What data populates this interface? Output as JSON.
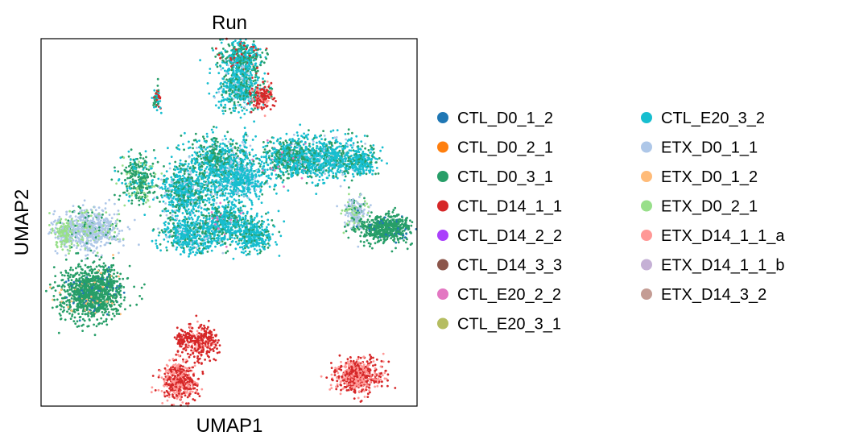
{
  "chart_data": {
    "type": "scatter",
    "title": "Run",
    "xlabel": "UMAP1",
    "ylabel": "UMAP2",
    "xticks": "none",
    "yticks": "none",
    "grid": false,
    "legend_placement": "right",
    "legend_columns": 2,
    "series": [
      {
        "name": "CTL_D0_1_2",
        "color": "#1f77b4"
      },
      {
        "name": "CTL_D0_2_1",
        "color": "#ff7f0e"
      },
      {
        "name": "CTL_D0_3_1",
        "color": "#279e68"
      },
      {
        "name": "CTL_D14_1_1",
        "color": "#d62728"
      },
      {
        "name": "CTL_D14_2_2",
        "color": "#aa40fc"
      },
      {
        "name": "CTL_D14_3_3",
        "color": "#8c564b"
      },
      {
        "name": "CTL_E20_2_2",
        "color": "#e377c2"
      },
      {
        "name": "CTL_E20_3_1",
        "color": "#b5bd61"
      },
      {
        "name": "CTL_E20_3_2",
        "color": "#17becf"
      },
      {
        "name": "ETX_D0_1_1",
        "color": "#aec7e8"
      },
      {
        "name": "ETX_D0_1_2",
        "color": "#ffbb78"
      },
      {
        "name": "ETX_D0_2_1",
        "color": "#98df8a"
      },
      {
        "name": "ETX_D14_1_1_a",
        "color": "#ff9896"
      },
      {
        "name": "ETX_D14_1_1_b",
        "color": "#c5b0d5"
      },
      {
        "name": "ETX_D14_3_2",
        "color": "#c49c94"
      }
    ],
    "clusters": [
      {
        "cx": 0.24,
        "cy": 0.94,
        "rx": 0.06,
        "ry": 0.05,
        "n": 420,
        "mix": {
          "CTL_E20_3_2": 0.5,
          "CTL_D0_3_1": 0.4,
          "CTL_D14_1_1": 0.1
        }
      },
      {
        "cx": 0.235,
        "cy": 0.845,
        "rx": 0.06,
        "ry": 0.07,
        "n": 520,
        "mix": {
          "CTL_E20_3_2": 0.6,
          "CTL_D0_3_1": 0.3,
          "ETX_D0_1_1": 0.1
        }
      },
      {
        "cx": 0.305,
        "cy": 0.81,
        "rx": 0.03,
        "ry": 0.035,
        "n": 180,
        "mix": {
          "CTL_D14_1_1": 0.7,
          "ETX_D14_1_1_a": 0.2,
          "CTL_D0_3_1": 0.1
        }
      },
      {
        "cx": -0.03,
        "cy": 0.805,
        "rx": 0.012,
        "ry": 0.03,
        "n": 60,
        "mix": {
          "CTL_E20_3_2": 0.5,
          "CTL_D14_1_1": 0.3,
          "CTL_D0_3_1": 0.2
        }
      },
      {
        "cx": 0.25,
        "cy": 0.64,
        "rx": 0.012,
        "ry": 0.06,
        "n": 40,
        "mix": {
          "CTL_E20_3_2": 0.6,
          "ETX_D0_1_1": 0.4
        }
      },
      {
        "cx": -0.085,
        "cy": 0.54,
        "rx": 0.055,
        "ry": 0.07,
        "n": 320,
        "mix": {
          "CTL_D0_3_1": 0.6,
          "CTL_E20_3_2": 0.25,
          "ETX_D0_2_1": 0.15
        }
      },
      {
        "cx": 0.06,
        "cy": 0.5,
        "rx": 0.07,
        "ry": 0.08,
        "n": 650,
        "mix": {
          "CTL_E20_3_2": 0.65,
          "CTL_D0_3_1": 0.25,
          "ETX_D0_1_1": 0.1
        }
      },
      {
        "cx": 0.16,
        "cy": 0.6,
        "rx": 0.09,
        "ry": 0.07,
        "n": 600,
        "mix": {
          "CTL_E20_3_2": 0.5,
          "CTL_D0_3_1": 0.45,
          "ETX_D0_1_1": 0.05
        }
      },
      {
        "cx": 0.23,
        "cy": 0.54,
        "rx": 0.08,
        "ry": 0.06,
        "n": 500,
        "mix": {
          "CTL_E20_3_2": 0.8,
          "ETX_D0_1_1": 0.15,
          "CTL_D0_3_1": 0.05
        }
      },
      {
        "cx": 0.395,
        "cy": 0.61,
        "rx": 0.08,
        "ry": 0.06,
        "n": 550,
        "mix": {
          "CTL_E20_3_2": 0.5,
          "CTL_D0_3_1": 0.45,
          "CTL_E20_2_2": 0.05
        }
      },
      {
        "cx": 0.52,
        "cy": 0.61,
        "rx": 0.11,
        "ry": 0.06,
        "n": 700,
        "mix": {
          "CTL_E20_3_2": 0.7,
          "CTL_D0_3_1": 0.2,
          "ETX_D0_1_1": 0.1
        }
      },
      {
        "cx": 0.625,
        "cy": 0.6,
        "rx": 0.045,
        "ry": 0.04,
        "n": 180,
        "mix": {
          "CTL_E20_3_2": 0.7,
          "CTL_D0_3_1": 0.3
        }
      },
      {
        "cx": 0.08,
        "cy": 0.36,
        "rx": 0.09,
        "ry": 0.05,
        "n": 500,
        "mix": {
          "CTL_E20_3_2": 0.7,
          "CTL_D0_3_1": 0.2,
          "ETX_D0_1_1": 0.1
        }
      },
      {
        "cx": 0.195,
        "cy": 0.4,
        "rx": 0.07,
        "ry": 0.06,
        "n": 450,
        "mix": {
          "CTL_E20_3_2": 0.7,
          "CTL_D0_3_1": 0.25,
          "CTL_E20_2_2": 0.05
        }
      },
      {
        "cx": 0.28,
        "cy": 0.36,
        "rx": 0.06,
        "ry": 0.05,
        "n": 300,
        "mix": {
          "CTL_E20_3_2": 0.8,
          "CTL_D0_3_1": 0.2
        }
      },
      {
        "cx": -0.25,
        "cy": 0.38,
        "rx": 0.09,
        "ry": 0.06,
        "n": 650,
        "mix": {
          "ETX_D0_1_1": 0.75,
          "ETX_D0_2_1": 0.15,
          "CTL_D0_3_1": 0.1
        }
      },
      {
        "cx": -0.325,
        "cy": 0.36,
        "rx": 0.025,
        "ry": 0.05,
        "n": 150,
        "mix": {
          "ETX_D0_2_1": 0.7,
          "ETX_D0_1_1": 0.3
        }
      },
      {
        "cx": -0.24,
        "cy": 0.17,
        "rx": 0.09,
        "ry": 0.08,
        "n": 1100,
        "mix": {
          "CTL_D0_3_1": 0.9,
          "CTL_D0_1_2": 0.05,
          "ETX_D0_1_2": 0.05
        }
      },
      {
        "cx": 0.605,
        "cy": 0.43,
        "rx": 0.03,
        "ry": 0.05,
        "n": 220,
        "mix": {
          "ETX_D0_1_1": 0.6,
          "ETX_D0_2_1": 0.25,
          "CTL_D0_3_1": 0.15
        }
      },
      {
        "cx": 0.7,
        "cy": 0.38,
        "rx": 0.08,
        "ry": 0.04,
        "n": 520,
        "mix": {
          "CTL_D0_3_1": 0.9,
          "CTL_D0_1_2": 0.1
        }
      },
      {
        "cx": 0.04,
        "cy": -0.12,
        "rx": 0.05,
        "ry": 0.06,
        "n": 480,
        "mix": {
          "CTL_D14_1_1": 0.55,
          "ETX_D14_1_1_a": 0.45
        }
      },
      {
        "cx": 0.11,
        "cy": 0.01,
        "rx": 0.05,
        "ry": 0.05,
        "n": 260,
        "mix": {
          "CTL_D14_1_1": 0.8,
          "ETX_D14_1_1_a": 0.2
        }
      },
      {
        "cx": 0.05,
        "cy": 0.02,
        "rx": 0.02,
        "ry": 0.03,
        "n": 60,
        "mix": {
          "CTL_D14_1_1": 1.0
        }
      },
      {
        "cx": 0.61,
        "cy": -0.1,
        "rx": 0.07,
        "ry": 0.05,
        "n": 550,
        "mix": {
          "CTL_D14_1_1": 0.55,
          "ETX_D14_1_1_a": 0.45
        }
      }
    ]
  }
}
